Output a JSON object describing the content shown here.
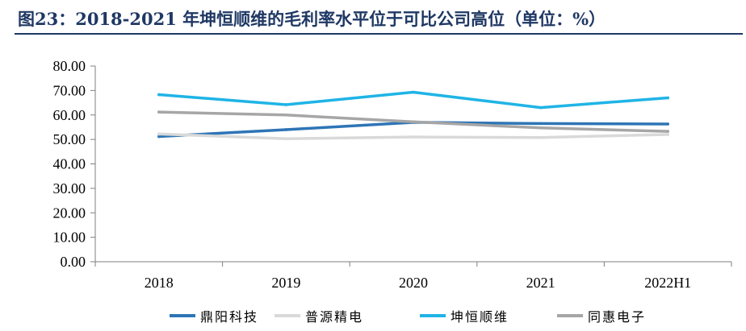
{
  "title": "图23：2018-2021 年坤恒顺维的毛利率水平位于可比公司高位（单位：%）",
  "chart_data": {
    "type": "line",
    "categories": [
      "2018",
      "2019",
      "2020",
      "2021",
      "2022H1"
    ],
    "ylim": [
      0,
      80
    ],
    "yticks": [
      "0.00",
      "10.00",
      "20.00",
      "30.00",
      "40.00",
      "50.00",
      "60.00",
      "70.00",
      "80.00"
    ],
    "grid": false,
    "legend_position": "bottom",
    "series": [
      {
        "name": "鼎阳科技",
        "color": "#2e75b6",
        "values": [
          51.2,
          54.0,
          57.0,
          56.5,
          56.3
        ]
      },
      {
        "name": "普源精电",
        "color": "#d9d9d9",
        "values": [
          52.2,
          50.3,
          51.0,
          50.8,
          52.0
        ]
      },
      {
        "name": "坤恒顺维",
        "color": "#1fb4e6",
        "values": [
          68.3,
          64.2,
          69.3,
          63.0,
          67.0
        ]
      },
      {
        "name": "同惠电子",
        "color": "#a6a6a6",
        "values": [
          61.2,
          60.0,
          57.2,
          54.7,
          53.3
        ]
      }
    ]
  }
}
